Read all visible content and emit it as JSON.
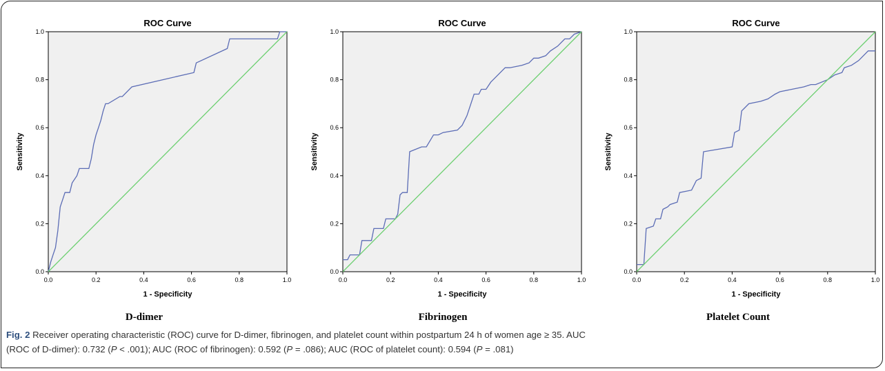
{
  "figure": {
    "panel_names": [
      "D-dimer",
      "Fibrinogen",
      "Platelet Count"
    ],
    "caption": {
      "fig_label": "Fig. 2",
      "line1": " Receiver operating characteristic (ROC) curve for D-dimer, fibrinogen, and platelet count within postpartum 24 h of women age ≥ 35. AUC",
      "line2_a": "(ROC of D-dimer): 0.732 (",
      "p1_var": "P",
      "line2_b": " < .001); AUC (ROC of fibrinogen): 0.592 (",
      "p2_var": "P",
      "line2_c": " = .086); AUC (ROC of platelet count): 0.594 (",
      "p3_var": "P",
      "line2_d": " = .081)"
    }
  },
  "colors": {
    "plot_background": "#f0f0f0",
    "roc_line": "#5b6cb5",
    "reference_line": "#6ccf70"
  },
  "chart_data": [
    {
      "type": "line",
      "title": "ROC Curve",
      "xlabel": "1 - Specificity",
      "ylabel": "Sensitivity",
      "xlim": [
        0,
        1
      ],
      "ylim": [
        0,
        1
      ],
      "xticks": [
        "0.0",
        "0.2",
        "0.4",
        "0.6",
        "0.8",
        "1.0"
      ],
      "yticks": [
        "0.0",
        "0.2",
        "0.4",
        "0.6",
        "0.8",
        "1.0"
      ],
      "grid": false,
      "series": [
        {
          "role": "roc",
          "x": [
            0,
            0.01,
            0.02,
            0.03,
            0.04,
            0.05,
            0.06,
            0.07,
            0.09,
            0.1,
            0.12,
            0.13,
            0.17,
            0.18,
            0.19,
            0.2,
            0.21,
            0.22,
            0.23,
            0.24,
            0.25,
            0.3,
            0.31,
            0.35,
            0.48,
            0.61,
            0.62,
            0.75,
            0.76,
            0.96,
            0.97,
            1.0
          ],
          "y": [
            0,
            0.04,
            0.07,
            0.1,
            0.17,
            0.27,
            0.3,
            0.33,
            0.33,
            0.37,
            0.4,
            0.43,
            0.43,
            0.47,
            0.53,
            0.57,
            0.6,
            0.63,
            0.67,
            0.7,
            0.7,
            0.73,
            0.73,
            0.77,
            0.8,
            0.83,
            0.87,
            0.93,
            0.97,
            0.97,
            1.0,
            1.0
          ]
        },
        {
          "role": "reference",
          "x": [
            0,
            1
          ],
          "y": [
            0,
            1
          ]
        }
      ]
    },
    {
      "type": "line",
      "title": "ROC Curve",
      "xlabel": "1 - Specificity",
      "ylabel": "Sensitivity",
      "xlim": [
        0,
        1
      ],
      "ylim": [
        0,
        1
      ],
      "xticks": [
        "0.0",
        "0.2",
        "0.4",
        "0.6",
        "0.8",
        "1.0"
      ],
      "yticks": [
        "0.0",
        "0.2",
        "0.4",
        "0.6",
        "0.8",
        "1.0"
      ],
      "grid": false,
      "series": [
        {
          "role": "roc",
          "x": [
            0,
            0.02,
            0.03,
            0.07,
            0.08,
            0.12,
            0.13,
            0.17,
            0.18,
            0.22,
            0.23,
            0.24,
            0.25,
            0.27,
            0.28,
            0.33,
            0.35,
            0.38,
            0.4,
            0.42,
            0.48,
            0.5,
            0.52,
            0.55,
            0.57,
            0.58,
            0.6,
            0.62,
            0.63,
            0.68,
            0.7,
            0.75,
            0.78,
            0.8,
            0.82,
            0.85,
            0.87,
            0.9,
            0.93,
            0.95,
            0.97,
            1.0
          ],
          "y": [
            0.05,
            0.05,
            0.07,
            0.07,
            0.13,
            0.13,
            0.18,
            0.18,
            0.22,
            0.22,
            0.24,
            0.32,
            0.33,
            0.33,
            0.5,
            0.52,
            0.52,
            0.57,
            0.57,
            0.58,
            0.59,
            0.61,
            0.65,
            0.74,
            0.74,
            0.76,
            0.76,
            0.79,
            0.8,
            0.85,
            0.85,
            0.86,
            0.87,
            0.89,
            0.89,
            0.9,
            0.92,
            0.94,
            0.97,
            0.97,
            0.99,
            1.0
          ]
        },
        {
          "role": "reference",
          "x": [
            0,
            1
          ],
          "y": [
            0,
            1
          ]
        }
      ]
    },
    {
      "type": "line",
      "title": "ROC Curve",
      "xlabel": "1 - Specificity",
      "ylabel": "Sensitivity",
      "xlim": [
        0,
        1
      ],
      "ylim": [
        0,
        1
      ],
      "xticks": [
        "0.0",
        "0.2",
        "0.4",
        "0.6",
        "0.8",
        "1.0"
      ],
      "yticks": [
        "0.0",
        "0.2",
        "0.4",
        "0.6",
        "0.8",
        "1.0"
      ],
      "grid": false,
      "series": [
        {
          "role": "roc",
          "x": [
            0,
            0.03,
            0.04,
            0.07,
            0.08,
            0.1,
            0.11,
            0.13,
            0.14,
            0.17,
            0.18,
            0.23,
            0.25,
            0.27,
            0.28,
            0.4,
            0.41,
            0.43,
            0.44,
            0.45,
            0.47,
            0.52,
            0.55,
            0.58,
            0.6,
            0.65,
            0.7,
            0.73,
            0.75,
            0.8,
            0.83,
            0.86,
            0.87,
            0.9,
            0.93,
            0.97,
            1.0
          ],
          "y": [
            0.03,
            0.03,
            0.18,
            0.19,
            0.22,
            0.22,
            0.26,
            0.27,
            0.28,
            0.29,
            0.33,
            0.34,
            0.38,
            0.39,
            0.5,
            0.52,
            0.58,
            0.59,
            0.67,
            0.68,
            0.7,
            0.71,
            0.72,
            0.74,
            0.75,
            0.76,
            0.77,
            0.78,
            0.78,
            0.8,
            0.82,
            0.83,
            0.85,
            0.86,
            0.88,
            0.92,
            0.92
          ]
        },
        {
          "role": "reference",
          "x": [
            0,
            1
          ],
          "y": [
            0,
            1
          ]
        }
      ]
    }
  ]
}
